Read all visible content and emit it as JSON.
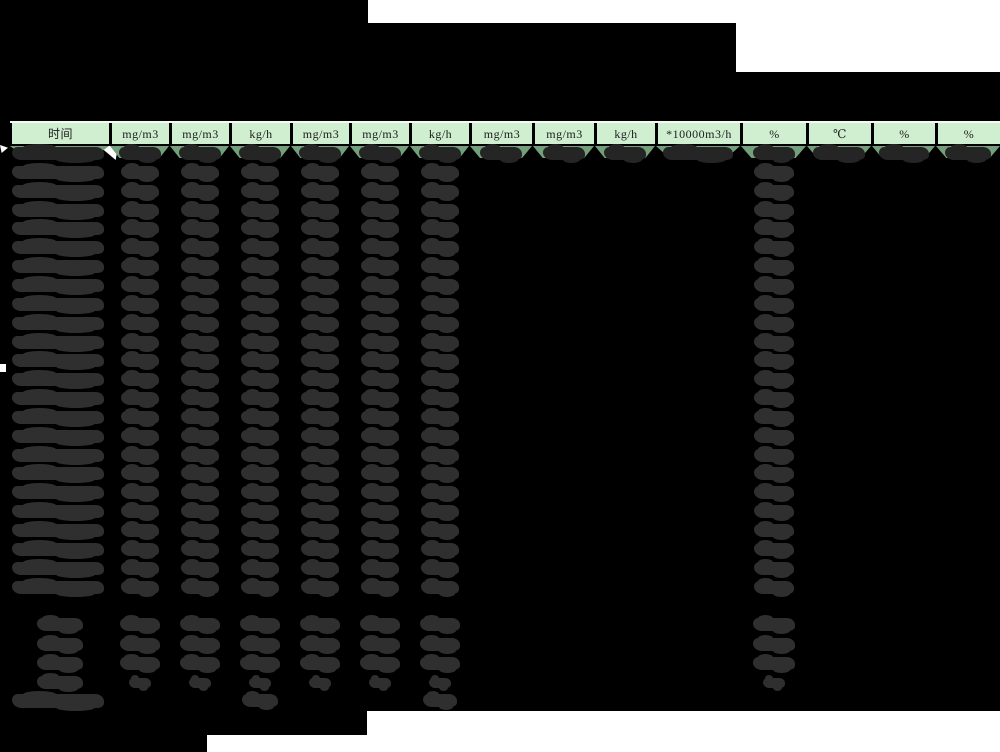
{
  "page": {
    "background": "#000000",
    "margin_color": "#ffffff"
  },
  "table": {
    "headers": [
      "时间",
      "mg/m3",
      "mg/m3",
      "kg/h",
      "mg/m3",
      "mg/m3",
      "kg/h",
      "mg/m3",
      "mg/m3",
      "kg/h",
      "*10000m3/h",
      "%",
      "℃",
      "%",
      "%"
    ],
    "colors": {
      "header_bg": "#d0efd0",
      "header_top_edge": "#f4fbf4",
      "header_text": "#1b1b1b",
      "first_row_bg": "#73a07b",
      "redacted_blob": "#2f2f2f",
      "redacted_blob_dark": "#252525"
    }
  },
  "body": {
    "data_row_count": 24,
    "first_row_columns": [
      0,
      1,
      2,
      3,
      4,
      5,
      6,
      7,
      8,
      9,
      10,
      11,
      12,
      13,
      14
    ],
    "data_row_columns": [
      0,
      1,
      2,
      3,
      4,
      5,
      6,
      11
    ],
    "summary_rows": [
      {
        "columns": [
          0,
          1,
          2,
          3,
          4,
          5,
          6,
          11
        ],
        "size": "summary"
      },
      {
        "columns": [
          0,
          1,
          2,
          3,
          4,
          5,
          6,
          11
        ],
        "size": "summary"
      },
      {
        "columns": [
          0,
          1,
          2,
          3,
          4,
          5,
          6,
          11
        ],
        "size": "summary"
      },
      {
        "columns": [
          0,
          1,
          2,
          3,
          4,
          5,
          6,
          11
        ],
        "size": "small"
      }
    ],
    "total_row_columns": [
      0,
      3,
      6
    ]
  }
}
